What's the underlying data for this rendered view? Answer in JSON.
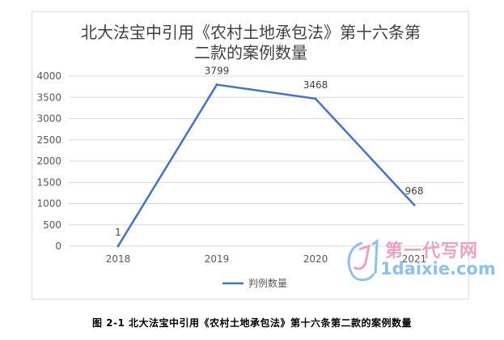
{
  "chart_data": {
    "type": "line",
    "title_lines": [
      "北大法宝中引用《农村土地承包法》第十六条第",
      "二款的案例数量"
    ],
    "categories": [
      "2018",
      "2019",
      "2020",
      "2021"
    ],
    "series": [
      {
        "name": "判例数量",
        "values": [
          1,
          3799,
          3468,
          968
        ],
        "color": "#4472c4"
      }
    ],
    "data_labels": [
      "1",
      "3799",
      "3468",
      "968"
    ],
    "y_ticks": [
      "0",
      "500",
      "1000",
      "1500",
      "2000",
      "2500",
      "3000",
      "3500",
      "4000"
    ],
    "ylim": [
      0,
      4000
    ],
    "grid": true,
    "legend_position": "bottom"
  },
  "caption": "图 2-1  北大法宝中引用《农村土地承包法》第十六条第二款的案例数量",
  "watermark": {
    "text_cn": "第一代写网",
    "text_en": "1daixie.com"
  }
}
